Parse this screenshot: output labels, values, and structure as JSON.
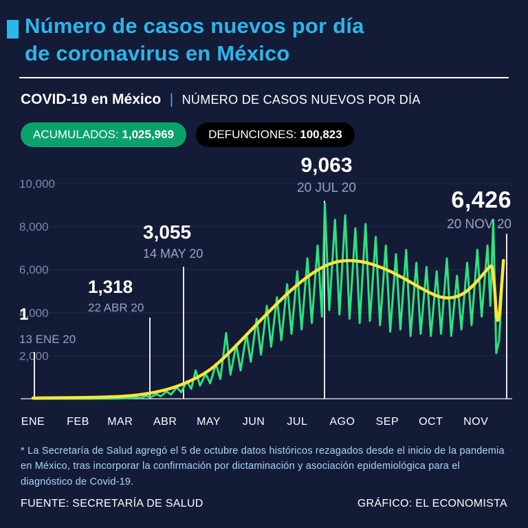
{
  "colors": {
    "background": "#141b37",
    "accent_cyan": "#2ab7ea",
    "line_green": "#2ee27e",
    "line_yellow": "#ffe53d",
    "badge_green": "#0aa26b",
    "badge_black": "#000000",
    "muted_gray": "#98a2c2",
    "footnote_blue": "#a6d9f5"
  },
  "header": {
    "title_line1": "Número de casos nuevos por día",
    "title_line2": "de coronavirus en México",
    "subheader_title": "COVID-19 en México",
    "subheader_separator": "|",
    "subheader_subtitle": "NÚMERO DE CASOS NUEVOS POR DÍA"
  },
  "badges": {
    "accumulated_label": "ACUMULADOS:",
    "accumulated_value": "1,025,969",
    "deaths_label": "DEFUNCIONES:",
    "deaths_value": "100,823"
  },
  "footnote": "* La Secretaría de Salud agregó el 5 de octubre datos históricos rezagados desde el inicio de la pandemia en México, tras incorporar la confirmación por dictaminación y asociación epidemiológica para el diagnóstico de Covid-19.",
  "footer": {
    "source": "FUENTE: SECRETARÍA DE SALUD",
    "credit": "GRÁFICO: EL ECONOMISTA"
  },
  "chart_data": {
    "type": "line",
    "title": "Número de casos nuevos por día de coronavirus en México",
    "x_axis": {
      "unit": "día del año 2020",
      "range": [
        0,
        330
      ],
      "month_ticks": [
        {
          "label": "ENE",
          "t": 0
        },
        {
          "label": "FEB",
          "t": 31
        },
        {
          "label": "MAR",
          "t": 60
        },
        {
          "label": "ABR",
          "t": 91
        },
        {
          "label": "MAY",
          "t": 121
        },
        {
          "label": "JUN",
          "t": 152
        },
        {
          "label": "JUL",
          "t": 182
        },
        {
          "label": "AGO",
          "t": 213
        },
        {
          "label": "SEP",
          "t": 244
        },
        {
          "label": "OCT",
          "t": 274
        },
        {
          "label": "NOV",
          "t": 305
        }
      ]
    },
    "y_axis": {
      "range": [
        0,
        10500
      ],
      "ticks": [
        {
          "label": "2,000",
          "v": 2000
        },
        {
          "label": "4,000",
          "v": 4000
        },
        {
          "label": "6,000",
          "v": 6000
        },
        {
          "label": "8,000",
          "v": 8000
        },
        {
          "label": "10,000",
          "v": 10000
        }
      ]
    },
    "series": [
      {
        "name": "casos nuevos por día",
        "color": "#2ee27e",
        "points": [
          [
            0,
            0
          ],
          [
            6,
            0
          ],
          [
            11,
            0
          ],
          [
            12,
            1
          ],
          [
            13,
            0
          ],
          [
            25,
            0
          ],
          [
            40,
            1
          ],
          [
            50,
            4
          ],
          [
            57,
            8
          ],
          [
            60,
            12
          ],
          [
            64,
            35
          ],
          [
            67,
            18
          ],
          [
            71,
            65
          ],
          [
            74,
            38
          ],
          [
            78,
            130
          ],
          [
            81,
            75
          ],
          [
            85,
            210
          ],
          [
            88,
            115
          ],
          [
            92,
            340
          ],
          [
            95,
            195
          ],
          [
            99,
            530
          ],
          [
            102,
            305
          ],
          [
            106,
            810
          ],
          [
            109,
            460
          ],
          [
            112,
            1318
          ],
          [
            115,
            610
          ],
          [
            119,
            1160
          ],
          [
            122,
            720
          ],
          [
            126,
            1620
          ],
          [
            129,
            920
          ],
          [
            133,
            3055
          ],
          [
            136,
            1120
          ],
          [
            140,
            2520
          ],
          [
            143,
            1320
          ],
          [
            147,
            3010
          ],
          [
            150,
            1720
          ],
          [
            154,
            3720
          ],
          [
            157,
            2050
          ],
          [
            161,
            4320
          ],
          [
            164,
            2420
          ],
          [
            168,
            4720
          ],
          [
            171,
            2720
          ],
          [
            175,
            5320
          ],
          [
            178,
            3020
          ],
          [
            182,
            5920
          ],
          [
            185,
            3220
          ],
          [
            189,
            6520
          ],
          [
            192,
            3520
          ],
          [
            196,
            7120
          ],
          [
            199,
            3820
          ],
          [
            201,
            9063
          ],
          [
            204,
            4120
          ],
          [
            208,
            8320
          ],
          [
            211,
            3920
          ],
          [
            215,
            8520
          ],
          [
            218,
            3720
          ],
          [
            222,
            7920
          ],
          [
            225,
            3520
          ],
          [
            229,
            8120
          ],
          [
            232,
            3620
          ],
          [
            236,
            7520
          ],
          [
            239,
            3420
          ],
          [
            243,
            7120
          ],
          [
            246,
            3120
          ],
          [
            250,
            6720
          ],
          [
            253,
            3220
          ],
          [
            257,
            6920
          ],
          [
            260,
            2920
          ],
          [
            264,
            6320
          ],
          [
            267,
            3020
          ],
          [
            271,
            6120
          ],
          [
            274,
            2920
          ],
          [
            278,
            5920
          ],
          [
            281,
            3020
          ],
          [
            285,
            6520
          ],
          [
            288,
            2920
          ],
          [
            292,
            5720
          ],
          [
            295,
            3220
          ],
          [
            299,
            6320
          ],
          [
            302,
            3420
          ],
          [
            306,
            6920
          ],
          [
            309,
            3820
          ],
          [
            313,
            7120
          ],
          [
            315,
            4320
          ],
          [
            317,
            8320
          ],
          [
            319,
            2120
          ],
          [
            321,
            2720
          ],
          [
            324,
            6426
          ]
        ]
      },
      {
        "name": "tendencia (promedio móvil)",
        "color": "#ffe53d",
        "points": [
          [
            0,
            30
          ],
          [
            20,
            45
          ],
          [
            40,
            60
          ],
          [
            60,
            100
          ],
          [
            75,
            190
          ],
          [
            91,
            390
          ],
          [
            105,
            710
          ],
          [
            121,
            1260
          ],
          [
            135,
            2120
          ],
          [
            152,
            3320
          ],
          [
            167,
            4360
          ],
          [
            182,
            5320
          ],
          [
            197,
            6060
          ],
          [
            210,
            6420
          ],
          [
            225,
            6420
          ],
          [
            240,
            6120
          ],
          [
            255,
            5620
          ],
          [
            270,
            5020
          ],
          [
            282,
            4660
          ],
          [
            292,
            4720
          ],
          [
            300,
            5040
          ],
          [
            308,
            5620
          ],
          [
            314,
            6120
          ],
          [
            317,
            6220
          ],
          [
            320,
            2750
          ],
          [
            324,
            6426
          ]
        ]
      }
    ],
    "annotations": [
      {
        "value": "1",
        "date": "13 ENE 20",
        "t": 12,
        "v": 1
      },
      {
        "value": "1,318",
        "date": "22 ABR 20",
        "t": 112,
        "v": 1318
      },
      {
        "value": "3,055",
        "date": "14 MAY 20",
        "t": 133,
        "v": 3055
      },
      {
        "value": "9,063",
        "date": "20 JUL 20",
        "t": 201,
        "v": 9063
      },
      {
        "value": "6,426",
        "date": "20 NOV 20",
        "t": 324,
        "v": 6426
      }
    ]
  }
}
